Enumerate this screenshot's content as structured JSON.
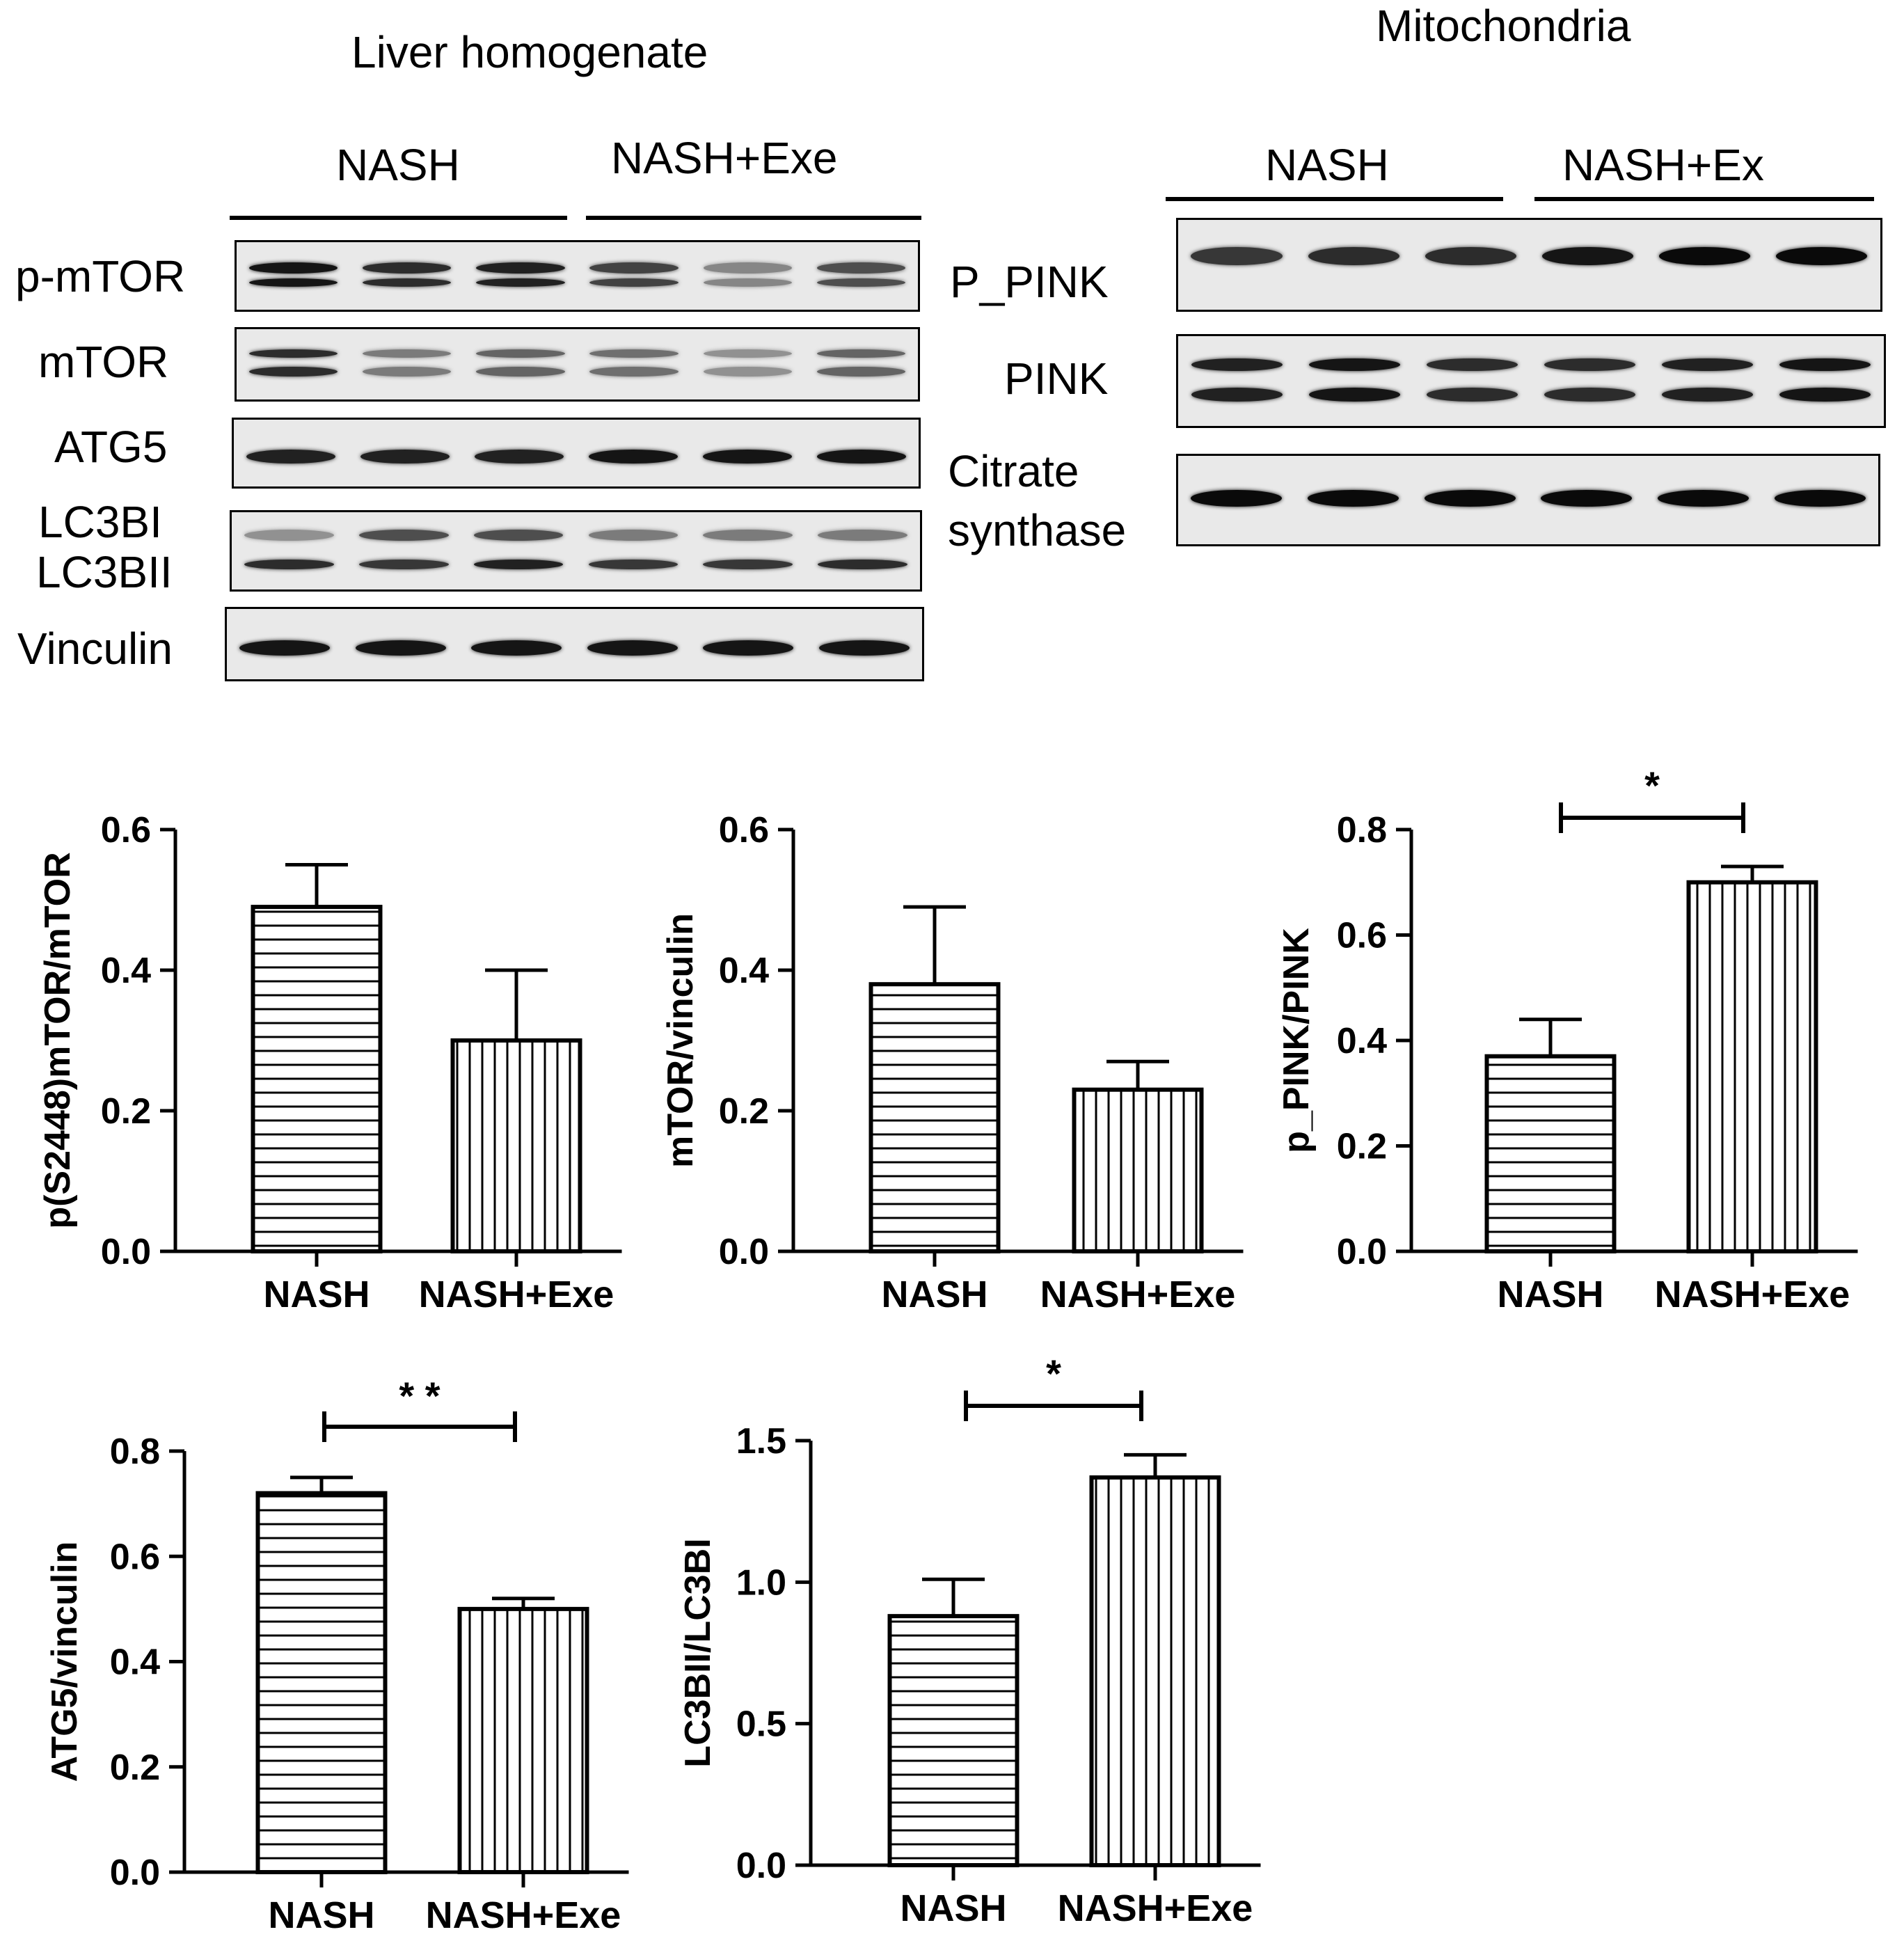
{
  "blots": {
    "liver": {
      "title": "Liver homogenate",
      "groups": [
        "NASH",
        "NASH+Exe"
      ],
      "rows": [
        {
          "label": "p-mTOR",
          "intensity": [
            0.95,
            0.85,
            0.9,
            0.75,
            0.45,
            0.7
          ]
        },
        {
          "label": "mTOR",
          "intensity": [
            0.85,
            0.5,
            0.6,
            0.55,
            0.4,
            0.6
          ]
        },
        {
          "label": "ATG5",
          "intensity": [
            0.9,
            0.9,
            0.9,
            0.95,
            0.95,
            0.95
          ]
        },
        {
          "label": "LC3BI",
          "intensity": [
            0.4,
            0.7,
            0.7,
            0.5,
            0.5,
            0.5
          ]
        },
        {
          "label": "LC3BII",
          "intensity": [
            0.85,
            0.8,
            0.9,
            0.8,
            0.8,
            0.85
          ]
        },
        {
          "label": "Vinculin",
          "intensity": [
            0.95,
            0.95,
            0.95,
            0.95,
            0.95,
            0.95
          ]
        }
      ]
    },
    "mito": {
      "title": "Mitochondria",
      "groups": [
        "NASH",
        "NASH+Ex"
      ],
      "rows": [
        {
          "label": "P_PINK",
          "intensity": [
            0.8,
            0.85,
            0.85,
            0.95,
            1.0,
            1.0
          ]
        },
        {
          "label": "PINK",
          "intensity": [
            0.9,
            0.95,
            0.85,
            0.85,
            0.9,
            0.95
          ]
        },
        {
          "label": "Citrate synthase",
          "label_lines": [
            "Citrate",
            "synthase"
          ],
          "intensity": [
            1.0,
            1.0,
            1.0,
            1.0,
            1.0,
            1.0
          ]
        }
      ]
    }
  },
  "chart_data": [
    {
      "type": "bar",
      "categories": [
        "NASH",
        "NASH+Exe"
      ],
      "values": [
        0.49,
        0.3
      ],
      "errors": [
        0.06,
        0.1
      ],
      "ylabel": "p(S2448)mTOR/mTOR",
      "ylim": [
        0,
        0.6
      ],
      "yticks": [
        "0.0",
        "0.2",
        "0.4",
        "0.6"
      ],
      "significance": "",
      "patterns": [
        "horizontal",
        "vertical"
      ]
    },
    {
      "type": "bar",
      "categories": [
        "NASH",
        "NASH+Exe"
      ],
      "values": [
        0.38,
        0.23
      ],
      "errors": [
        0.11,
        0.04
      ],
      "ylabel": "mTOR/vinculin",
      "ylim": [
        0,
        0.6
      ],
      "yticks": [
        "0.0",
        "0.2",
        "0.4",
        "0.6"
      ],
      "significance": "",
      "patterns": [
        "horizontal",
        "vertical"
      ]
    },
    {
      "type": "bar",
      "categories": [
        "NASH",
        "NASH+Exe"
      ],
      "values": [
        0.37,
        0.7
      ],
      "errors": [
        0.07,
        0.03
      ],
      "ylabel": "p_PINK/PINK",
      "ylim": [
        0,
        0.8
      ],
      "yticks": [
        "0.0",
        "0.2",
        "0.4",
        "0.6",
        "0.8"
      ],
      "significance": "*",
      "patterns": [
        "horizontal",
        "vertical"
      ]
    },
    {
      "type": "bar",
      "categories": [
        "NASH",
        "NASH+Exe"
      ],
      "values": [
        0.72,
        0.5
      ],
      "errors": [
        0.03,
        0.02
      ],
      "ylabel": "ATG5/vinculin",
      "ylim": [
        0,
        0.8
      ],
      "yticks": [
        "0.0",
        "0.2",
        "0.4",
        "0.6",
        "0.8"
      ],
      "significance": "* *",
      "patterns": [
        "horizontal",
        "vertical"
      ]
    },
    {
      "type": "bar",
      "categories": [
        "NASH",
        "NASH+Exe"
      ],
      "values": [
        0.88,
        1.37
      ],
      "errors": [
        0.13,
        0.08
      ],
      "ylabel": "LC3BII/LC3BI",
      "ylim": [
        0,
        1.5
      ],
      "yticks": [
        "0.0",
        "0.5",
        "1.0",
        "1.5"
      ],
      "significance": "*",
      "patterns": [
        "horizontal",
        "vertical"
      ]
    }
  ]
}
